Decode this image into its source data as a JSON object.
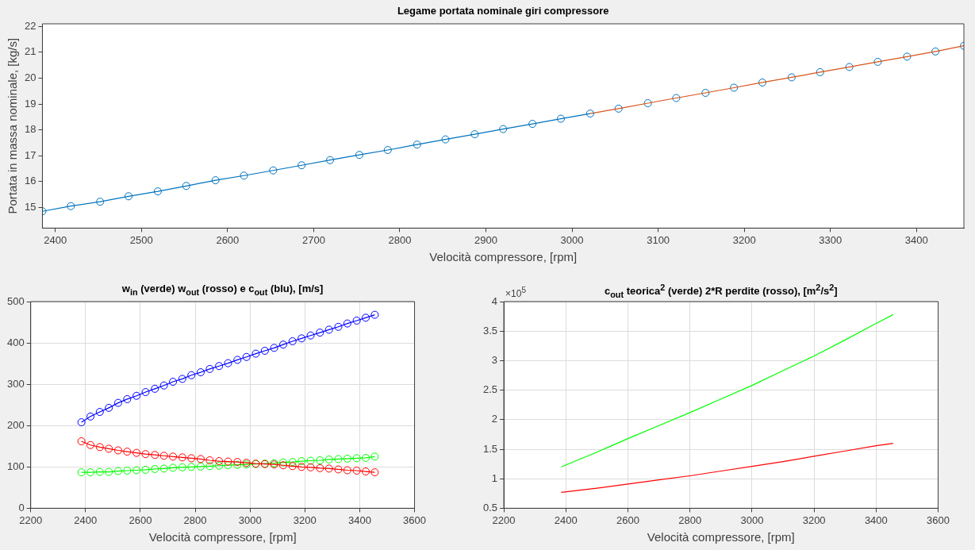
{
  "chart_data": [
    {
      "type": "line",
      "title": "Legame portata nominale giri compressore",
      "xlabel": "Velocità compressore, [rpm]",
      "ylabel": "Portata in massa nominale, [kg/s]",
      "xlim": [
        2385,
        3455
      ],
      "ylim": [
        14.2,
        22.1
      ],
      "xticks": [
        2400,
        2500,
        2600,
        2700,
        2800,
        2900,
        3000,
        3100,
        3200,
        3300,
        3400
      ],
      "yticks": [
        15,
        16,
        17,
        18,
        19,
        20,
        21,
        22
      ],
      "grid": false,
      "legend": false,
      "line_style": "solid",
      "series": [
        {
          "type": "line",
          "marker": "circle",
          "color": "#0072bd",
          "x": [
            2385,
            2418,
            2452,
            2485,
            2519,
            2552,
            2586,
            2619,
            2653,
            2686,
            2719,
            2753,
            2786,
            2820,
            2853,
            2887,
            2920,
            2954,
            2987,
            3021
          ],
          "values": [
            14.85,
            15.05,
            15.22,
            15.43,
            15.62,
            15.83,
            16.05,
            16.23,
            16.43,
            16.63,
            16.83,
            17.03,
            17.22,
            17.43,
            17.63,
            17.83,
            18.03,
            18.23,
            18.43,
            18.63
          ]
        },
        {
          "type": "line",
          "marker": "none",
          "color": "#d95319",
          "x": [
            3021,
            3054,
            3088,
            3121,
            3155,
            3188,
            3221,
            3255,
            3288,
            3322,
            3355,
            3389,
            3422,
            3455
          ],
          "values": [
            18.63,
            18.82,
            19.03,
            19.23,
            19.43,
            19.63,
            19.83,
            20.03,
            20.23,
            20.43,
            20.63,
            20.83,
            21.03,
            21.25
          ]
        },
        {
          "type": "scatter",
          "marker": "circle",
          "color": "#0072bd",
          "x": [
            3054,
            3088,
            3121,
            3155,
            3188,
            3221,
            3255,
            3288,
            3322,
            3355,
            3389,
            3422,
            3455
          ],
          "values": [
            18.82,
            19.03,
            19.23,
            19.43,
            19.63,
            19.83,
            20.03,
            20.23,
            20.43,
            20.63,
            20.83,
            21.03,
            21.25
          ]
        }
      ]
    },
    {
      "type": "line",
      "title": "w$_{in}$ (verde) w$_{out}$ (rosso) e c$_{out}$ (blu), [m/s]",
      "xlabel": "Velocità compressore, [rpm]",
      "xlim": [
        2200,
        3600
      ],
      "ylim": [
        0,
        500
      ],
      "xticks": [
        2200,
        2400,
        2600,
        2800,
        3000,
        3200,
        3400,
        3600
      ],
      "yticks": [
        0,
        100,
        200,
        300,
        400,
        500
      ],
      "grid": true,
      "legend": false,
      "marker": "circle",
      "line_style": "solid",
      "x": [
        2385,
        2418,
        2452,
        2485,
        2519,
        2552,
        2586,
        2619,
        2653,
        2686,
        2719,
        2753,
        2786,
        2820,
        2853,
        2887,
        2920,
        2954,
        2987,
        3021,
        3054,
        3088,
        3121,
        3155,
        3188,
        3221,
        3255,
        3288,
        3322,
        3355,
        3389,
        3422,
        3455
      ],
      "series": [
        {
          "color": "#0000ff",
          "values": [
            208,
            222,
            233,
            243,
            255,
            264,
            272,
            281,
            289,
            297,
            306,
            313,
            322,
            329,
            337,
            344,
            351,
            359,
            366,
            374,
            381,
            388,
            396,
            404,
            411,
            418,
            425,
            432,
            439,
            447,
            454,
            461,
            468
          ]
        },
        {
          "color": "#ff0000",
          "values": [
            162,
            153,
            148,
            144,
            140,
            137,
            134,
            131,
            129,
            127,
            125,
            123,
            121,
            119,
            116,
            114,
            113,
            112,
            110,
            108,
            107,
            106,
            104,
            102,
            100,
            99,
            97,
            96,
            94,
            92,
            91,
            89,
            87
          ]
        },
        {
          "color": "#00ff00",
          "values": [
            87,
            87,
            88,
            88,
            90,
            91,
            92,
            93,
            95,
            96,
            98,
            99,
            100,
            101,
            102,
            103,
            104,
            105,
            106,
            107,
            108,
            109,
            111,
            112,
            114,
            115,
            116,
            118,
            119,
            120,
            121,
            122,
            125
          ]
        }
      ]
    },
    {
      "type": "line",
      "title": "c$_{out}$ teorica$^{2}$ (verde) 2*R perdite (rosso), [m$^{2}$/s$^{2}$]",
      "xlabel": "Velocità compressore, [rpm]",
      "xlim": [
        2200,
        3600
      ],
      "ylim": [
        0.5,
        4
      ],
      "xticks": [
        2200,
        2400,
        2600,
        2800,
        3000,
        3200,
        3400,
        3600
      ],
      "yticks": [
        0.5,
        1,
        1.5,
        2,
        2.5,
        3,
        3.5,
        4
      ],
      "grid": true,
      "legend": false,
      "marker": "none",
      "line_style": "solid",
      "annotations": [
        "×10$^{5}$"
      ],
      "x": [
        2385,
        2500,
        2600,
        2700,
        2800,
        2900,
        3000,
        3100,
        3200,
        3300,
        3400,
        3455
      ],
      "series": [
        {
          "color": "#00ff00",
          "values": [
            1.2,
            1.45,
            1.68,
            1.9,
            2.12,
            2.35,
            2.58,
            2.83,
            3.08,
            3.35,
            3.63,
            3.78
          ]
        },
        {
          "color": "#ff0000",
          "values": [
            0.77,
            0.84,
            0.91,
            0.98,
            1.05,
            1.13,
            1.21,
            1.29,
            1.38,
            1.47,
            1.56,
            1.6
          ]
        }
      ]
    }
  ]
}
